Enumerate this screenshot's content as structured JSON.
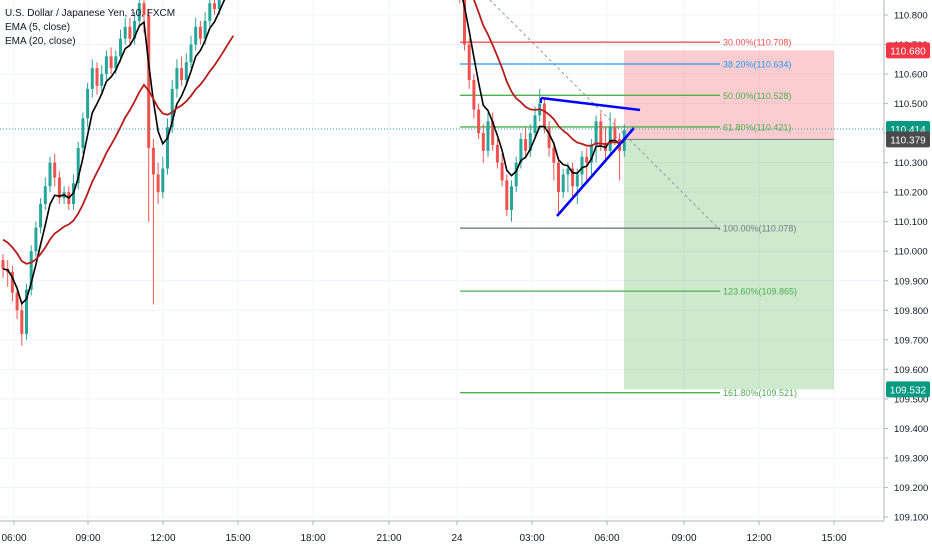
{
  "legend": {
    "symbol": "U.S. Dollar / Japanese Yen, 10, FXCM",
    "ema_fast": "EMA (5, close)",
    "ema_slow": "EMA (20, close)"
  },
  "chart_data": {
    "type": "candlestick",
    "title": "U.S. Dollar / Japanese Yen, 10, FXCM",
    "x_ticks": [
      "06:00",
      "09:00",
      "12:00",
      "15:00",
      "18:00",
      "21:00",
      "24",
      "03:00",
      "06:00",
      "09:00",
      "12:00",
      "15:00"
    ],
    "y_ticks": [
      "110.800",
      "110.700",
      "110.600",
      "110.500",
      "110.400",
      "110.300",
      "110.200",
      "110.100",
      "110.000",
      "109.900",
      "109.800",
      "109.700",
      "109.600",
      "109.500",
      "109.400",
      "109.300",
      "109.200",
      "109.100"
    ],
    "ylim": [
      109.085,
      110.841
    ],
    "last_price": 110.414,
    "countdown": "02:04",
    "ema_value": 110.379,
    "session1_candles": [
      [
        109.97,
        109.94,
        109.91,
        109.99
      ],
      [
        109.94,
        109.93,
        109.88,
        109.97
      ],
      [
        109.93,
        109.86,
        109.83,
        109.95
      ],
      [
        109.86,
        109.8,
        109.77,
        109.88
      ],
      [
        109.8,
        109.72,
        109.68,
        109.82
      ],
      [
        109.72,
        109.87,
        109.7,
        109.89
      ],
      [
        109.87,
        110.0,
        109.85,
        110.02
      ],
      [
        110.0,
        110.08,
        109.98,
        110.1
      ],
      [
        110.08,
        110.16,
        110.06,
        110.18
      ],
      [
        110.16,
        110.22,
        110.14,
        110.25
      ],
      [
        110.22,
        110.3,
        110.2,
        110.32
      ],
      [
        110.3,
        110.25,
        110.22,
        110.33
      ],
      [
        110.25,
        110.18,
        110.16,
        110.27
      ],
      [
        110.18,
        110.2,
        110.16,
        110.22
      ],
      [
        110.2,
        110.16,
        110.14,
        110.22
      ],
      [
        110.16,
        110.23,
        110.14,
        110.26
      ],
      [
        110.23,
        110.35,
        110.21,
        110.37
      ],
      [
        110.35,
        110.45,
        110.33,
        110.47
      ],
      [
        110.45,
        110.55,
        110.42,
        110.57
      ],
      [
        110.55,
        110.62,
        110.52,
        110.65
      ],
      [
        110.62,
        110.56,
        110.53,
        110.64
      ],
      [
        110.56,
        110.6,
        110.54,
        110.63
      ],
      [
        110.6,
        110.66,
        110.58,
        110.68
      ],
      [
        110.66,
        110.62,
        110.6,
        110.69
      ],
      [
        110.62,
        110.66,
        110.6,
        110.68
      ],
      [
        110.66,
        110.72,
        110.64,
        110.75
      ],
      [
        110.72,
        110.76,
        110.7,
        110.79
      ],
      [
        110.76,
        110.72,
        110.7,
        110.79
      ],
      [
        110.72,
        110.78,
        110.7,
        110.81
      ],
      [
        110.78,
        110.84,
        110.76,
        110.86
      ],
      [
        110.84,
        110.8,
        110.74,
        110.87
      ],
      [
        110.8,
        110.35,
        110.1,
        110.82
      ],
      [
        110.35,
        110.26,
        109.82,
        110.38
      ],
      [
        110.26,
        110.2,
        110.16,
        110.3
      ],
      [
        110.2,
        110.28,
        110.18,
        110.32
      ],
      [
        110.28,
        110.42,
        110.26,
        110.45
      ],
      [
        110.42,
        110.55,
        110.4,
        110.58
      ],
      [
        110.55,
        110.62,
        110.52,
        110.65
      ],
      [
        110.62,
        110.58,
        110.56,
        110.66
      ],
      [
        110.58,
        110.64,
        110.56,
        110.67
      ],
      [
        110.64,
        110.7,
        110.62,
        110.73
      ],
      [
        110.7,
        110.76,
        110.68,
        110.79
      ],
      [
        110.76,
        110.72,
        110.7,
        110.78
      ],
      [
        110.72,
        110.78,
        110.7,
        110.81
      ],
      [
        110.78,
        110.84,
        110.76,
        110.86
      ],
      [
        110.84,
        110.82,
        110.8,
        110.88
      ],
      [
        110.82,
        110.88,
        110.8,
        110.9
      ],
      [
        110.88,
        110.92,
        110.86,
        110.95
      ],
      [
        110.92,
        110.95,
        110.9,
        110.97
      ],
      [
        110.95,
        110.97,
        110.93,
        110.99
      ]
    ],
    "session2_candles": [
      [
        110.94,
        110.9,
        110.87,
        110.96
      ],
      [
        110.9,
        110.94,
        110.88,
        110.96
      ],
      [
        110.94,
        110.88,
        110.86,
        110.96
      ],
      [
        110.88,
        110.92,
        110.85,
        110.95
      ],
      [
        110.92,
        110.86,
        110.84,
        110.94
      ],
      [
        110.86,
        110.7,
        110.68,
        110.88
      ],
      [
        110.7,
        110.58,
        110.55,
        110.72
      ],
      [
        110.58,
        110.48,
        110.45,
        110.6
      ],
      [
        110.48,
        110.4,
        110.38,
        110.5
      ],
      [
        110.4,
        110.34,
        110.3,
        110.43
      ],
      [
        110.34,
        110.44,
        110.32,
        110.47
      ],
      [
        110.44,
        110.36,
        110.34,
        110.47
      ],
      [
        110.36,
        110.3,
        110.28,
        110.38
      ],
      [
        110.3,
        110.24,
        110.22,
        110.33
      ],
      [
        110.24,
        110.14,
        110.12,
        110.26
      ],
      [
        110.14,
        110.22,
        110.1,
        110.24
      ],
      [
        110.22,
        110.3,
        110.2,
        110.32
      ],
      [
        110.3,
        110.38,
        110.28,
        110.4
      ],
      [
        110.38,
        110.34,
        110.32,
        110.42
      ],
      [
        110.34,
        110.4,
        110.32,
        110.43
      ],
      [
        110.4,
        110.46,
        110.38,
        110.49
      ],
      [
        110.46,
        110.5,
        110.44,
        110.55
      ],
      [
        110.5,
        110.42,
        110.4,
        110.52
      ],
      [
        110.42,
        110.35,
        110.32,
        110.44
      ],
      [
        110.35,
        110.3,
        110.24,
        110.37
      ],
      [
        110.3,
        110.2,
        110.13,
        110.32
      ],
      [
        110.2,
        110.26,
        110.18,
        110.28
      ],
      [
        110.26,
        110.28,
        110.2,
        110.3
      ],
      [
        110.28,
        110.22,
        110.18,
        110.3
      ],
      [
        110.22,
        110.26,
        110.16,
        110.28
      ],
      [
        110.26,
        110.32,
        110.22,
        110.34
      ],
      [
        110.32,
        110.3,
        110.24,
        110.35
      ],
      [
        110.3,
        110.36,
        110.26,
        110.38
      ],
      [
        110.36,
        110.44,
        110.3,
        110.46
      ],
      [
        110.44,
        110.36,
        110.34,
        110.47
      ],
      [
        110.36,
        110.34,
        110.3,
        110.42
      ],
      [
        110.34,
        110.42,
        110.32,
        110.47
      ],
      [
        110.42,
        110.38,
        110.36,
        110.45
      ],
      [
        110.38,
        110.34,
        110.24,
        110.4
      ],
      [
        110.34,
        110.41,
        110.32,
        110.43
      ]
    ],
    "fibonacci": [
      {
        "label": "30.00%(110.708)",
        "price": 110.708,
        "color": "#ef5350"
      },
      {
        "label": "38.20%(110.634)",
        "price": 110.634,
        "color": "#2196f3"
      },
      {
        "label": "50.00%(110.528)",
        "price": 110.528,
        "color": "#4caf50"
      },
      {
        "label": "61.80%(110.421)",
        "price": 110.421,
        "color": "#4caf50"
      },
      {
        "label": "100.00%(110.078)",
        "price": 110.078,
        "color": "#787b86"
      },
      {
        "label": "123.60%(109.865)",
        "price": 109.865,
        "color": "#4caf50"
      },
      {
        "label": "161.80%(109.521)",
        "price": 109.521,
        "color": "#4caf50"
      }
    ],
    "position": {
      "entry": 110.379,
      "stop": 110.68,
      "target": 109.532
    },
    "price_tags": [
      {
        "value": "110.680",
        "price": 110.68,
        "color": "#f23645"
      },
      {
        "value": "110.414",
        "price": 110.414,
        "color": "#089981"
      },
      {
        "value": "110.379",
        "price": 110.379,
        "color": "#4a4a4a"
      },
      {
        "value": "109.532",
        "price": 109.532,
        "color": "#089981"
      }
    ],
    "colors": {
      "up": "#26a69a",
      "down": "#ef5350",
      "ema_fast": "#000000",
      "ema_slow": "#b71c1c",
      "pattern": "#0000ff"
    }
  }
}
